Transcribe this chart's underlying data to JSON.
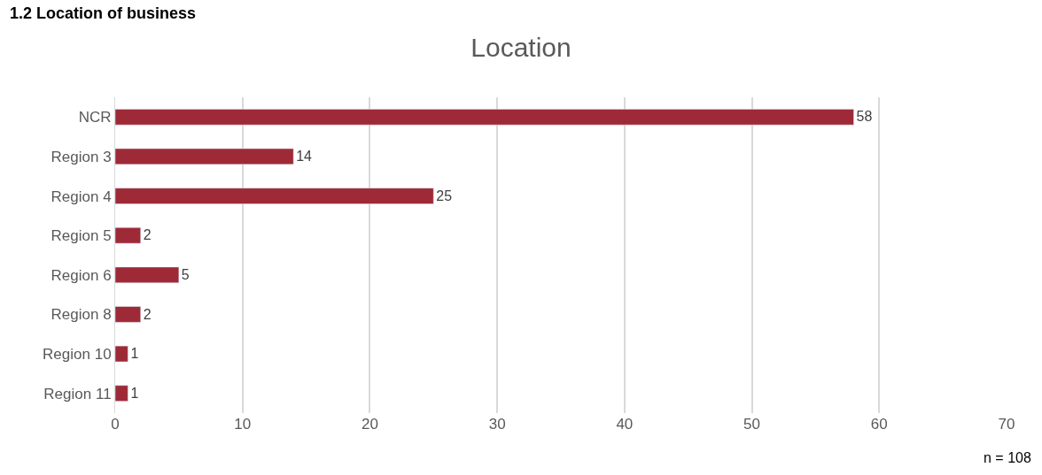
{
  "chart_data": {
    "type": "bar",
    "orientation": "horizontal",
    "title": "Location",
    "categories": [
      "NCR",
      "Region 3",
      "Region 4",
      "Region 5",
      "Region 6",
      "Region 8",
      "Region 10",
      "Region 11"
    ],
    "values": [
      58,
      14,
      25,
      2,
      5,
      2,
      1,
      1
    ],
    "color": "#9e2a38",
    "xlim": [
      0,
      70
    ],
    "xticks": [
      0,
      10,
      20,
      30,
      40,
      50,
      60,
      70
    ],
    "grid": "x",
    "data_labels": true,
    "annotations": [
      "1.2 Location of business",
      "n = 108"
    ]
  }
}
